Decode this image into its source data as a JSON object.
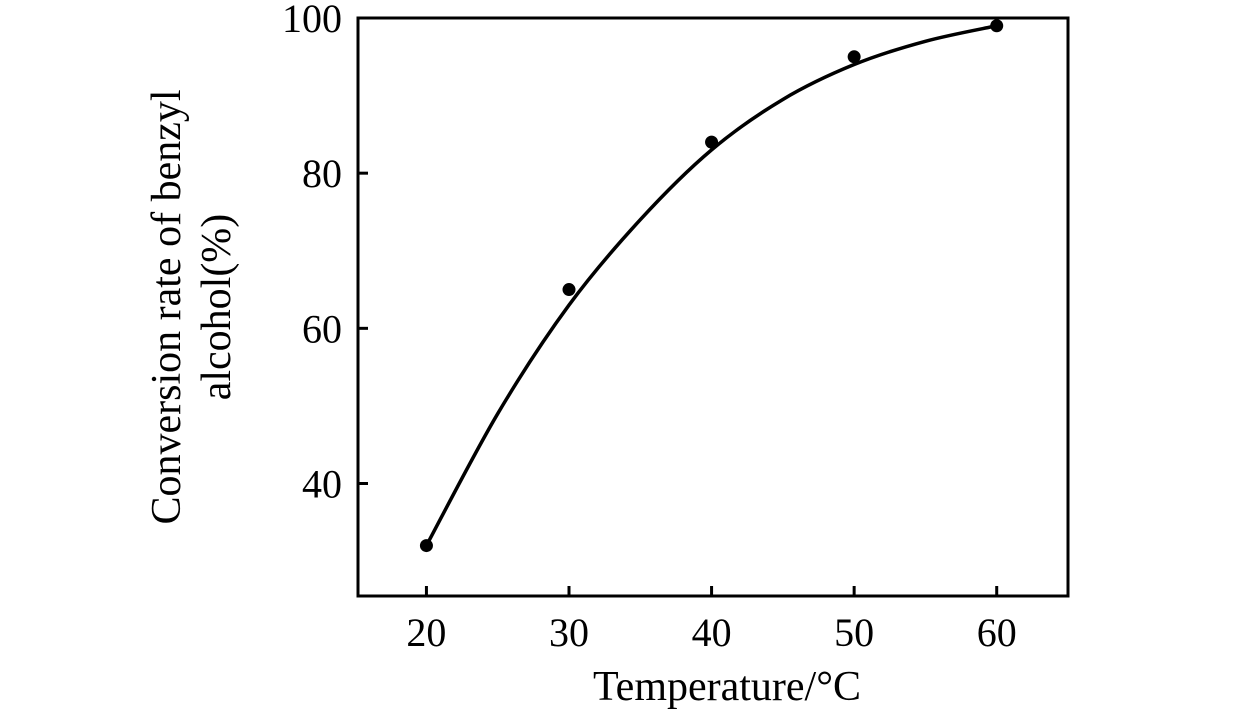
{
  "chart_data": {
    "type": "scatter",
    "title": "",
    "xlabel": "Temperature/°C",
    "ylabel_lines": [
      "Conversion rate of benzyl",
      "alcohol(%)"
    ],
    "xlim": [
      15.2,
      65
    ],
    "ylim": [
      25.5,
      100
    ],
    "x_ticks": [
      20,
      30,
      40,
      50,
      60
    ],
    "y_ticks": [
      40,
      60,
      80,
      100
    ],
    "series": [
      {
        "x": [
          20,
          30,
          40,
          50,
          60
        ],
        "y": [
          32,
          65,
          84,
          95,
          99
        ]
      }
    ],
    "fit_curve": {
      "x": [
        20,
        25,
        30,
        35,
        40,
        45,
        50,
        55,
        60
      ],
      "y": [
        32,
        49,
        63,
        74,
        83,
        89.5,
        94,
        97,
        99
      ]
    },
    "grid": false,
    "legend": "none",
    "colors": {
      "line": "#000000",
      "marker": "#000000",
      "axis": "#000000"
    }
  }
}
